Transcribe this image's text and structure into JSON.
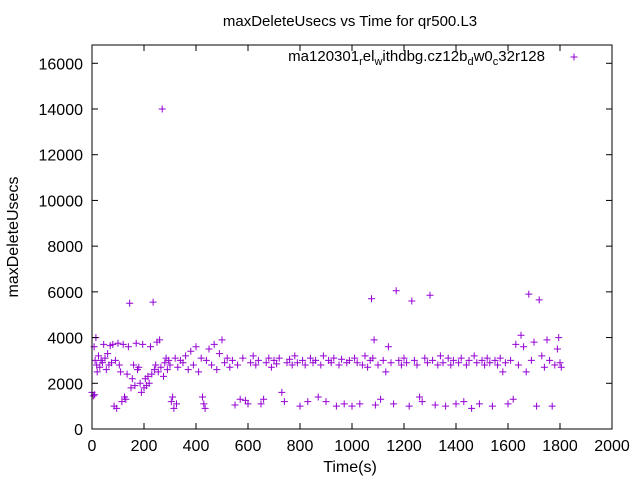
{
  "chart_data": {
    "type": "scatter",
    "title": "maxDeleteUsecs vs Time for qr500.L3",
    "xlabel": "Time(s)",
    "ylabel": "maxDeleteUsecs",
    "xlim": [
      0,
      2000
    ],
    "ylim": [
      0,
      16800
    ],
    "xticks": [
      "0",
      "200",
      "400",
      "600",
      "800",
      "1000",
      "1200",
      "1400",
      "1600",
      "1800",
      "2000"
    ],
    "yticks": [
      "0",
      "2000",
      "4000",
      "6000",
      "8000",
      "10000",
      "12000",
      "14000",
      "16000"
    ],
    "grid": false,
    "legend": {
      "placement": "top-right",
      "parts": [
        {
          "text": "ma120301",
          "sub": false
        },
        {
          "text": "r",
          "sub": true
        },
        {
          "text": "el",
          "sub": false
        },
        {
          "text": "w",
          "sub": true
        },
        {
          "text": "ithdbg.cz12b",
          "sub": false
        },
        {
          "text": "d",
          "sub": true
        },
        {
          "text": "w0",
          "sub": false
        },
        {
          "text": "c",
          "sub": true
        },
        {
          "text": "32r128",
          "sub": false
        }
      ]
    },
    "series": [
      {
        "marker": "+",
        "color": "#9400d3",
        "points": [
          [
            0,
            1600
          ],
          [
            5,
            1450
          ],
          [
            10,
            1500
          ],
          [
            15,
            4000
          ],
          [
            8,
            3600
          ],
          [
            12,
            3000
          ],
          [
            18,
            2800
          ],
          [
            20,
            2500
          ],
          [
            25,
            3200
          ],
          [
            30,
            2700
          ],
          [
            35,
            3000
          ],
          [
            40,
            2900
          ],
          [
            45,
            3700
          ],
          [
            50,
            3100
          ],
          [
            55,
            2600
          ],
          [
            60,
            3300
          ],
          [
            65,
            2800
          ],
          [
            70,
            3650
          ],
          [
            75,
            2900
          ],
          [
            80,
            3700
          ],
          [
            85,
            1000
          ],
          [
            90,
            3000
          ],
          [
            95,
            900
          ],
          [
            100,
            3750
          ],
          [
            105,
            2800
          ],
          [
            110,
            2500
          ],
          [
            115,
            1200
          ],
          [
            120,
            3700
          ],
          [
            125,
            1400
          ],
          [
            130,
            1300
          ],
          [
            135,
            2400
          ],
          [
            140,
            3600
          ],
          [
            145,
            5500
          ],
          [
            150,
            1800
          ],
          [
            155,
            2200
          ],
          [
            160,
            2800
          ],
          [
            165,
            1900
          ],
          [
            170,
            3750
          ],
          [
            175,
            2600
          ],
          [
            180,
            2700
          ],
          [
            185,
            2000
          ],
          [
            190,
            1600
          ],
          [
            195,
            3700
          ],
          [
            200,
            1800
          ],
          [
            205,
            2200
          ],
          [
            210,
            1900
          ],
          [
            215,
            2300
          ],
          [
            220,
            2000
          ],
          [
            225,
            3600
          ],
          [
            230,
            2400
          ],
          [
            235,
            5550
          ],
          [
            240,
            2600
          ],
          [
            245,
            2800
          ],
          [
            250,
            3800
          ],
          [
            255,
            2500
          ],
          [
            260,
            3900
          ],
          [
            265,
            2700
          ],
          [
            270,
            14000
          ],
          [
            275,
            2300
          ],
          [
            280,
            2900
          ],
          [
            285,
            3100
          ],
          [
            290,
            2600
          ],
          [
            295,
            3000
          ],
          [
            300,
            2800
          ],
          [
            305,
            1200
          ],
          [
            310,
            1400
          ],
          [
            315,
            900
          ],
          [
            320,
            3100
          ],
          [
            325,
            1100
          ],
          [
            330,
            2700
          ],
          [
            340,
            3000
          ],
          [
            350,
            2900
          ],
          [
            360,
            3200
          ],
          [
            370,
            2600
          ],
          [
            380,
            3400
          ],
          [
            390,
            2800
          ],
          [
            400,
            3600
          ],
          [
            410,
            2500
          ],
          [
            420,
            3100
          ],
          [
            425,
            1400
          ],
          [
            430,
            1100
          ],
          [
            435,
            900
          ],
          [
            440,
            3000
          ],
          [
            450,
            3500
          ],
          [
            460,
            2800
          ],
          [
            470,
            3700
          ],
          [
            480,
            2600
          ],
          [
            490,
            3300
          ],
          [
            500,
            3900
          ],
          [
            510,
            2900
          ],
          [
            520,
            3100
          ],
          [
            530,
            2700
          ],
          [
            540,
            3000
          ],
          [
            550,
            1050
          ],
          [
            560,
            2800
          ],
          [
            570,
            1300
          ],
          [
            580,
            3100
          ],
          [
            590,
            1250
          ],
          [
            600,
            1100
          ],
          [
            610,
            2900
          ],
          [
            620,
            3200
          ],
          [
            630,
            2800
          ],
          [
            640,
            3000
          ],
          [
            650,
            1100
          ],
          [
            660,
            1300
          ],
          [
            670,
            2900
          ],
          [
            680,
            3100
          ],
          [
            690,
            2700
          ],
          [
            700,
            3000
          ],
          [
            710,
            2850
          ],
          [
            720,
            3100
          ],
          [
            730,
            1600
          ],
          [
            740,
            1200
          ],
          [
            750,
            2900
          ],
          [
            760,
            3050
          ],
          [
            770,
            2800
          ],
          [
            780,
            3200
          ],
          [
            790,
            2900
          ],
          [
            800,
            1000
          ],
          [
            810,
            3000
          ],
          [
            820,
            2800
          ],
          [
            830,
            1200
          ],
          [
            840,
            3100
          ],
          [
            850,
            2900
          ],
          [
            860,
            3000
          ],
          [
            870,
            1400
          ],
          [
            880,
            2800
          ],
          [
            890,
            3200
          ],
          [
            900,
            1200
          ],
          [
            910,
            3000
          ],
          [
            920,
            2900
          ],
          [
            930,
            3100
          ],
          [
            940,
            1000
          ],
          [
            950,
            2800
          ],
          [
            960,
            3050
          ],
          [
            970,
            1100
          ],
          [
            980,
            2900
          ],
          [
            990,
            3000
          ],
          [
            1000,
            1000
          ],
          [
            1010,
            3100
          ],
          [
            1020,
            2900
          ],
          [
            1030,
            1100
          ],
          [
            1040,
            2800
          ],
          [
            1050,
            3200
          ],
          [
            1060,
            2700
          ],
          [
            1070,
            3000
          ],
          [
            1075,
            5700
          ],
          [
            1080,
            3100
          ],
          [
            1085,
            3900
          ],
          [
            1090,
            1050
          ],
          [
            1100,
            2800
          ],
          [
            1110,
            1300
          ],
          [
            1120,
            3000
          ],
          [
            1130,
            2500
          ],
          [
            1140,
            3600
          ],
          [
            1150,
            2900
          ],
          [
            1160,
            1100
          ],
          [
            1170,
            6050
          ],
          [
            1180,
            3000
          ],
          [
            1190,
            2800
          ],
          [
            1200,
            3100
          ],
          [
            1210,
            2900
          ],
          [
            1220,
            1000
          ],
          [
            1230,
            5600
          ],
          [
            1240,
            3000
          ],
          [
            1250,
            2800
          ],
          [
            1260,
            1400
          ],
          [
            1270,
            1200
          ],
          [
            1280,
            3100
          ],
          [
            1290,
            2900
          ],
          [
            1300,
            5850
          ],
          [
            1310,
            3000
          ],
          [
            1320,
            1050
          ],
          [
            1330,
            2800
          ],
          [
            1340,
            3200
          ],
          [
            1350,
            2900
          ],
          [
            1360,
            1000
          ],
          [
            1370,
            3100
          ],
          [
            1380,
            2800
          ],
          [
            1390,
            3000
          ],
          [
            1400,
            1100
          ],
          [
            1410,
            2900
          ],
          [
            1420,
            3100
          ],
          [
            1430,
            1200
          ],
          [
            1440,
            2800
          ],
          [
            1450,
            3000
          ],
          [
            1460,
            900
          ],
          [
            1470,
            3200
          ],
          [
            1480,
            2900
          ],
          [
            1490,
            1100
          ],
          [
            1500,
            3000
          ],
          [
            1510,
            2800
          ],
          [
            1520,
            3100
          ],
          [
            1530,
            2900
          ],
          [
            1540,
            1000
          ],
          [
            1550,
            3000
          ],
          [
            1560,
            2800
          ],
          [
            1570,
            3100
          ],
          [
            1580,
            2500
          ],
          [
            1590,
            2900
          ],
          [
            1600,
            1100
          ],
          [
            1610,
            3000
          ],
          [
            1620,
            1300
          ],
          [
            1630,
            3700
          ],
          [
            1640,
            2800
          ],
          [
            1650,
            4100
          ],
          [
            1660,
            3600
          ],
          [
            1670,
            2500
          ],
          [
            1680,
            5900
          ],
          [
            1690,
            3000
          ],
          [
            1700,
            3800
          ],
          [
            1710,
            1000
          ],
          [
            1720,
            5650
          ],
          [
            1730,
            3200
          ],
          [
            1740,
            2700
          ],
          [
            1750,
            3900
          ],
          [
            1760,
            3000
          ],
          [
            1770,
            1000
          ],
          [
            1780,
            2800
          ],
          [
            1790,
            3500
          ],
          [
            1795,
            4000
          ],
          [
            1800,
            2900
          ],
          [
            1805,
            2700
          ]
        ]
      }
    ]
  }
}
